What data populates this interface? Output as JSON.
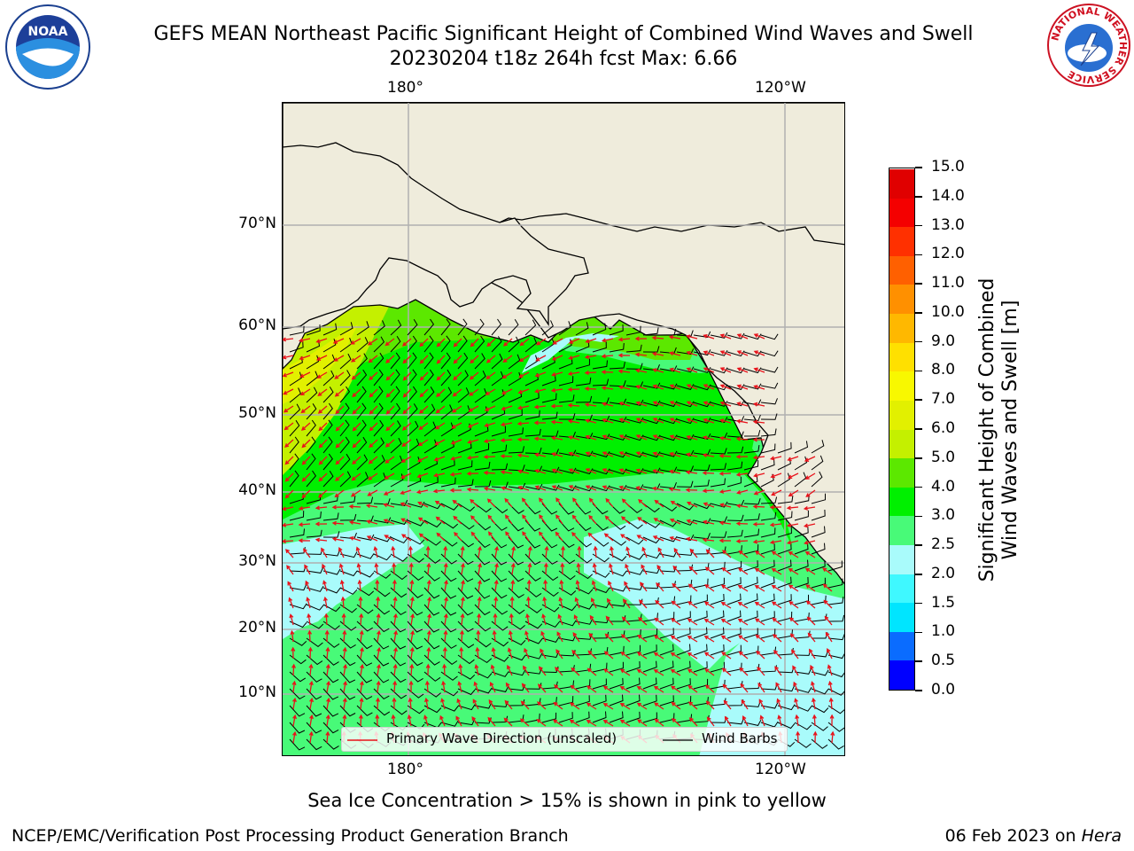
{
  "title_line1": "GEFS MEAN Northeast Pacific Significant Height of Combined Wind Waves and Swell",
  "title_line2": "20230204 t18z 264h fcst   Max: 6.66",
  "lon_labels_top": [
    "180°",
    "120°W"
  ],
  "lon_labels_bottom": [
    "180°",
    "120°W"
  ],
  "lat_labels": [
    "70°N",
    "60°N",
    "50°N",
    "40°N",
    "30°N",
    "20°N",
    "10°N"
  ],
  "legend": {
    "wave_direction": "Primary Wave Direction (unscaled)",
    "wind_barbs": "Wind Barbs"
  },
  "colorbar": {
    "label_line1": "Significant Height of Combined",
    "label_line2": "Wind Waves and Swell [m]",
    "ticks": [
      "0.0",
      "0.5",
      "1.0",
      "1.5",
      "2.0",
      "2.5",
      "3.0",
      "4.0",
      "5.0",
      "6.0",
      "7.0",
      "8.0",
      "9.0",
      "10.0",
      "11.0",
      "12.0",
      "13.0",
      "14.0",
      "15.0"
    ],
    "colors": [
      "#0000ff",
      "#0a6cff",
      "#00e5ff",
      "#3ff8ff",
      "#a9fbfb",
      "#48fa78",
      "#00f000",
      "#5ce800",
      "#c4f000",
      "#e2f000",
      "#f8f800",
      "#ffe000",
      "#ffb800",
      "#ff9000",
      "#ff6000",
      "#ff3000",
      "#f40000",
      "#e00000"
    ]
  },
  "colors": {
    "land": "#efecdc",
    "grid": "#b0b0b0",
    "wave_arrow": "#e8121a",
    "barb": "#000000"
  },
  "note": "Sea Ice Concentration > 15% is shown in pink to yellow",
  "footer_left": "NCEP/EMC/Verification Post Processing Product Generation Branch",
  "footer_right_date": "06 Feb 2023 on ",
  "footer_right_system": "Hera",
  "logos": {
    "left": "NOAA",
    "right_text": "NATIONAL WEATHER SERVICE"
  }
}
